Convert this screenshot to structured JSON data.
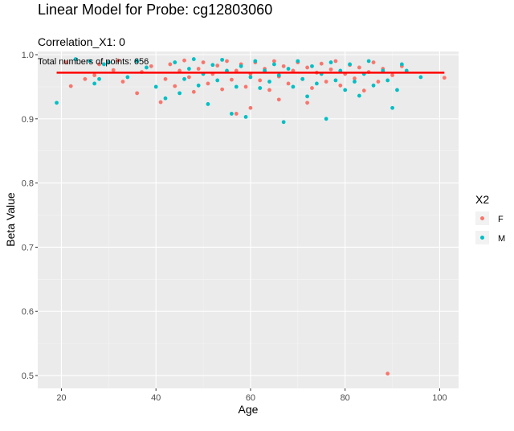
{
  "chart_data": {
    "type": "scatter",
    "title": "Linear Model for Probe: cg12803060",
    "subtitle": "Correlation_X1: 0",
    "annotation": "Total numbers of points: 656",
    "xlabel": "Age",
    "ylabel": "Beta Value",
    "xlim": [
      15,
      104
    ],
    "ylim": [
      0.48,
      1.005
    ],
    "x_ticks": [
      20,
      40,
      60,
      80,
      100
    ],
    "y_ticks": [
      0.5,
      0.6,
      0.7,
      0.8,
      0.9,
      1.0
    ],
    "y_tick_labels": [
      "0.5",
      "0.6",
      "0.7",
      "0.8",
      "0.9",
      "1.0"
    ],
    "grid": true,
    "legend_title": "X2",
    "legend_position": "right",
    "fit_line": {
      "x": [
        19,
        101
      ],
      "y": [
        0.972,
        0.972
      ],
      "color": "#ff0000"
    },
    "series": [
      {
        "name": "F",
        "color": "#F8766D",
        "points": [
          [
            21,
            0.988
          ],
          [
            22,
            0.951
          ],
          [
            25,
            0.962
          ],
          [
            27,
            0.968
          ],
          [
            28,
            0.985
          ],
          [
            31,
            0.976
          ],
          [
            32,
            0.991
          ],
          [
            33,
            0.958
          ],
          [
            36,
            0.94
          ],
          [
            37,
            0.973
          ],
          [
            39,
            0.982
          ],
          [
            41,
            0.926
          ],
          [
            42,
            0.962
          ],
          [
            43,
            0.985
          ],
          [
            44,
            0.951
          ],
          [
            45,
            0.975
          ],
          [
            46,
            0.991
          ],
          [
            47,
            0.965
          ],
          [
            48,
            0.942
          ],
          [
            49,
            0.978
          ],
          [
            50,
            0.988
          ],
          [
            51,
            0.955
          ],
          [
            52,
            0.97
          ],
          [
            53,
            0.983
          ],
          [
            54,
            0.946
          ],
          [
            55,
            0.99
          ],
          [
            56,
            0.961
          ],
          [
            57,
            0.975
          ],
          [
            57,
            0.908
          ],
          [
            58,
            0.985
          ],
          [
            59,
            0.95
          ],
          [
            60,
            0.97
          ],
          [
            60,
            0.917
          ],
          [
            61,
            0.988
          ],
          [
            62,
            0.96
          ],
          [
            63,
            0.978
          ],
          [
            64,
            0.945
          ],
          [
            65,
            0.99
          ],
          [
            66,
            0.966
          ],
          [
            66,
            0.93
          ],
          [
            67,
            0.982
          ],
          [
            68,
            0.955
          ],
          [
            69,
            0.975
          ],
          [
            70,
            0.988
          ],
          [
            71,
            0.962
          ],
          [
            72,
            0.98
          ],
          [
            72,
            0.925
          ],
          [
            73,
            0.948
          ],
          [
            74,
            0.972
          ],
          [
            75,
            0.986
          ],
          [
            76,
            0.958
          ],
          [
            77,
            0.977
          ],
          [
            78,
            0.99
          ],
          [
            79,
            0.952
          ],
          [
            80,
            0.97
          ],
          [
            81,
            0.984
          ],
          [
            82,
            0.963
          ],
          [
            83,
            0.98
          ],
          [
            84,
            0.944
          ],
          [
            85,
            0.973
          ],
          [
            86,
            0.988
          ],
          [
            87,
            0.958
          ],
          [
            88,
            0.978
          ],
          [
            89,
            0.503
          ],
          [
            90,
            0.968
          ],
          [
            92,
            0.982
          ],
          [
            101,
            0.964
          ]
        ]
      },
      {
        "name": "M",
        "color": "#00BFC4",
        "points": [
          [
            19,
            0.925
          ],
          [
            23,
            0.993
          ],
          [
            26,
            0.99
          ],
          [
            27,
            0.955
          ],
          [
            28,
            0.962
          ],
          [
            29,
            0.985
          ],
          [
            30,
            0.988
          ],
          [
            34,
            0.965
          ],
          [
            36,
            0.99
          ],
          [
            38,
            0.98
          ],
          [
            40,
            0.95
          ],
          [
            42,
            0.932
          ],
          [
            44,
            0.988
          ],
          [
            45,
            0.94
          ],
          [
            46,
            0.962
          ],
          [
            47,
            0.978
          ],
          [
            48,
            0.993
          ],
          [
            49,
            0.952
          ],
          [
            50,
            0.97
          ],
          [
            51,
            0.923
          ],
          [
            52,
            0.984
          ],
          [
            53,
            0.96
          ],
          [
            54,
            0.992
          ],
          [
            55,
            0.975
          ],
          [
            56,
            0.908
          ],
          [
            57,
            0.95
          ],
          [
            58,
            0.982
          ],
          [
            59,
            0.903
          ],
          [
            60,
            0.965
          ],
          [
            61,
            0.99
          ],
          [
            62,
            0.948
          ],
          [
            63,
            0.975
          ],
          [
            64,
            0.958
          ],
          [
            65,
            0.985
          ],
          [
            66,
            0.968
          ],
          [
            67,
            0.895
          ],
          [
            68,
            0.978
          ],
          [
            69,
            0.95
          ],
          [
            70,
            0.99
          ],
          [
            71,
            0.962
          ],
          [
            72,
            0.935
          ],
          [
            73,
            0.982
          ],
          [
            74,
            0.955
          ],
          [
            75,
            0.97
          ],
          [
            76,
            0.9
          ],
          [
            77,
            0.988
          ],
          [
            78,
            0.96
          ],
          [
            79,
            0.975
          ],
          [
            80,
            0.945
          ],
          [
            81,
            0.985
          ],
          [
            82,
            0.958
          ],
          [
            83,
            0.936
          ],
          [
            84,
            0.97
          ],
          [
            85,
            0.99
          ],
          [
            86,
            0.952
          ],
          [
            88,
            0.975
          ],
          [
            89,
            0.96
          ],
          [
            90,
            0.917
          ],
          [
            91,
            0.945
          ],
          [
            92,
            0.985
          ],
          [
            93,
            0.975
          ],
          [
            96,
            0.965
          ]
        ]
      }
    ]
  }
}
